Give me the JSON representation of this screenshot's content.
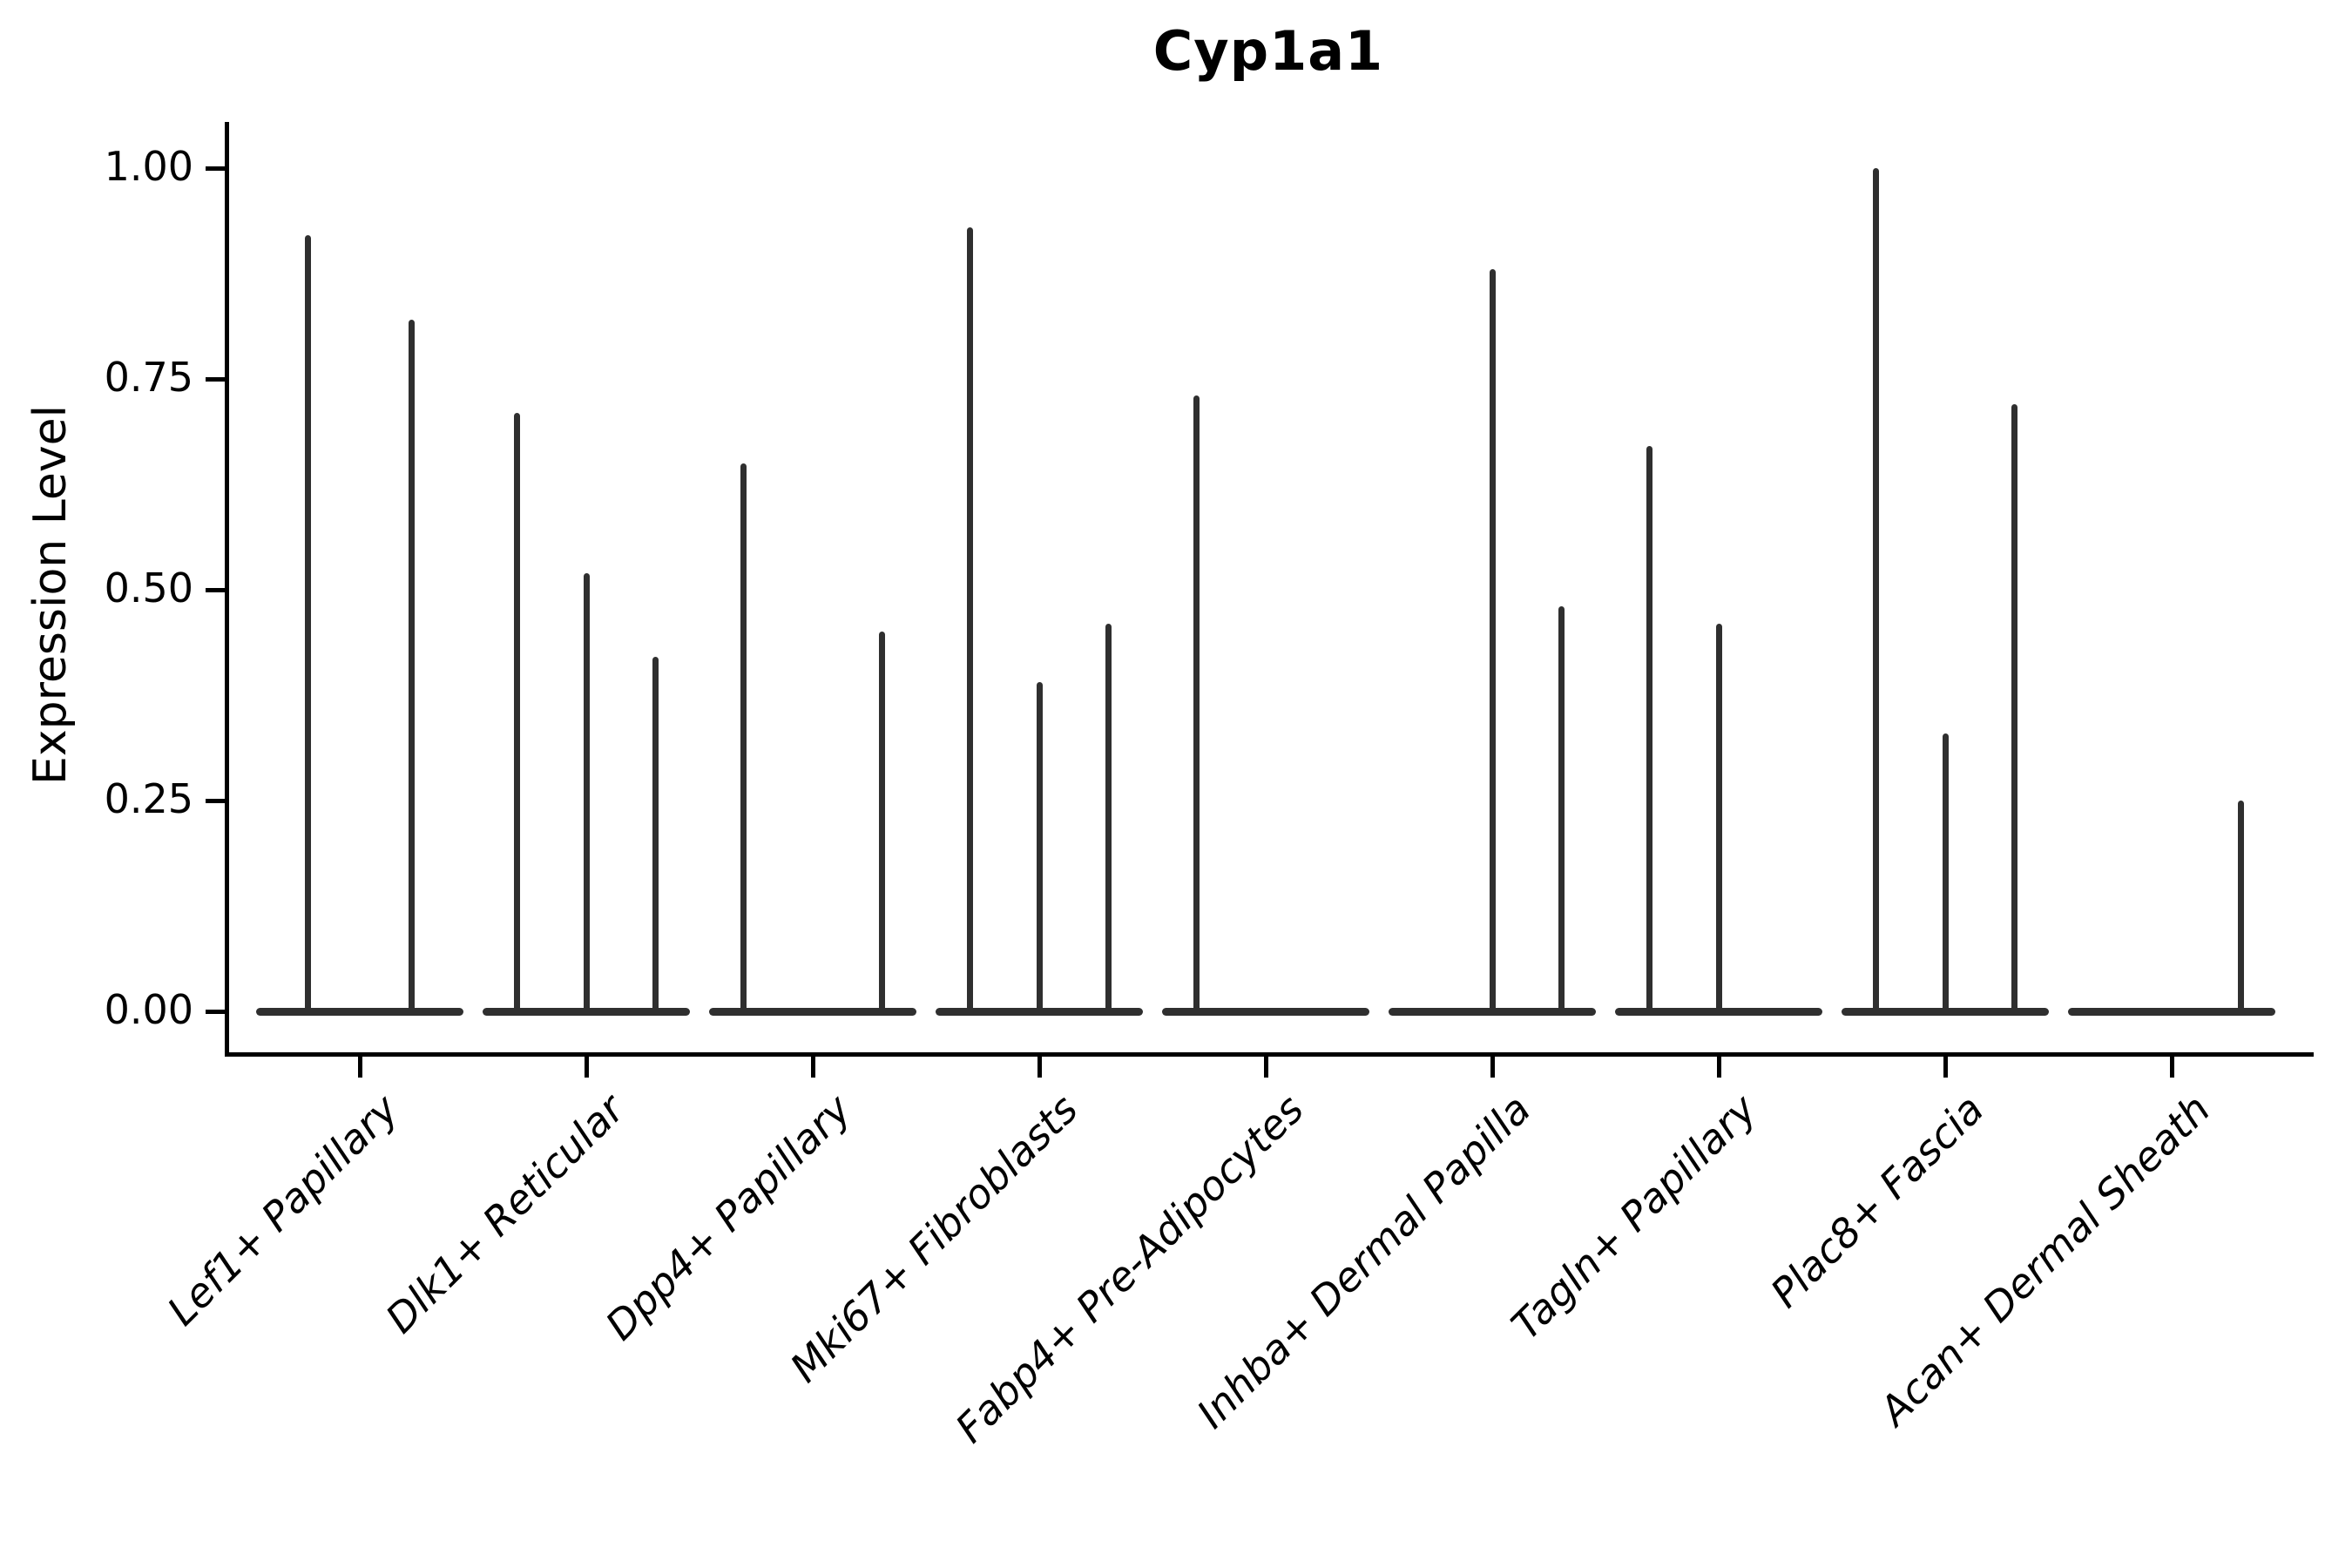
{
  "title": "Cyp1a1",
  "chart_data": {
    "type": "violin",
    "title": "Cyp1a1",
    "xlabel": "",
    "ylabel": "Expression Level",
    "ytick_labels": [
      "0.00",
      "0.25",
      "0.50",
      "0.75",
      "1.00"
    ],
    "ytick_values": [
      0,
      0.25,
      0.5,
      0.75,
      1.0
    ],
    "ylim": [
      0,
      1.05
    ],
    "grid": "off",
    "legend": "none",
    "categories": [
      "Lef1+ Papillary",
      "Dlk1+ Reticular",
      "Dpp4+ Papillary",
      "Mki67+ Fibroblasts",
      "Fabp4+ Pre-Adipocytes",
      "Inhba+ Dermal Papilla",
      "Tagln+ Papillary",
      "Plac8+ Fascia",
      "Acan+ Dermal Sheath"
    ],
    "description": "Violin plot of Cyp1a1 expression; violins are collapsed flat at 0 with thin spikes reaching each violin's maximum expression value.",
    "groups": [
      {
        "category": "Lef1+ Papillary",
        "violin_maxima": [
          0.92,
          0.82
        ]
      },
      {
        "category": "Dlk1+ Reticular",
        "violin_maxima": [
          0.71,
          0.52,
          0.42
        ]
      },
      {
        "category": "Dpp4+ Papillary",
        "violin_maxima": [
          0.65,
          0,
          0.45
        ]
      },
      {
        "category": "Mki67+ Fibroblasts",
        "violin_maxima": [
          0.93,
          0.39,
          0.46
        ]
      },
      {
        "category": "Fabp4+ Pre-Adipocytes",
        "violin_maxima": [
          0.73,
          0,
          0
        ]
      },
      {
        "category": "Inhba+ Dermal Papilla",
        "violin_maxima": [
          0,
          0.88,
          0.48
        ]
      },
      {
        "category": "Tagln+ Papillary",
        "violin_maxima": [
          0.67,
          0.46,
          0
        ]
      },
      {
        "category": "Plac8+ Fascia",
        "violin_maxima": [
          1.0,
          0.33,
          0.72
        ]
      },
      {
        "category": "Acan+ Dermal Sheath",
        "violin_maxima": [
          0,
          0,
          0.25
        ]
      }
    ],
    "colors": {
      "violin": "#2f2f2f",
      "axis": "#000000",
      "text": "#000000",
      "background": "#ffffff"
    }
  }
}
